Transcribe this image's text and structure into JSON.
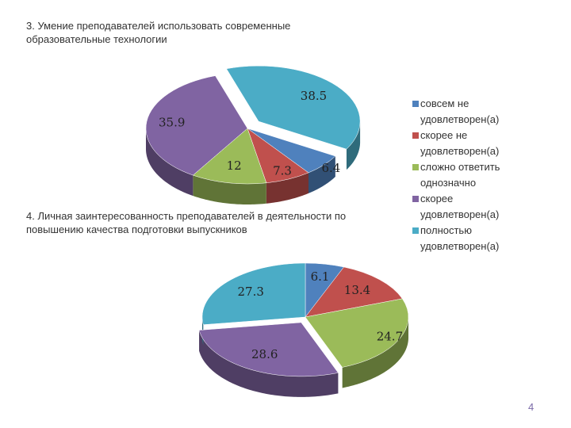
{
  "chart_data": [
    {
      "type": "pie",
      "title": "3. Умение преподавателей использовать современные образовательные технологии",
      "categories": [
        "совсем не удовлетворен(а)",
        "скорее не удовлетворен(а)",
        "сложно ответить однозначно",
        "скорее удовлетворен(а)",
        "полностью удовлетворен(а)"
      ],
      "values": [
        6.4,
        7.3,
        12,
        35.9,
        38.5
      ],
      "colors": [
        "#4f81bd",
        "#c0504d",
        "#9bbb59",
        "#8064a2",
        "#4bacc6"
      ]
    },
    {
      "type": "pie",
      "title": "4. Личная заинтересованность преподавателей в деятельности по повышению качества подготовки выпускников",
      "values": [
        6.1,
        13.4,
        24.7,
        28.6,
        27.3
      ],
      "colors": [
        "#4f81bd",
        "#c0504d",
        "#9bbb59",
        "#8064a2",
        "#4bacc6"
      ]
    }
  ],
  "page_number": "4"
}
